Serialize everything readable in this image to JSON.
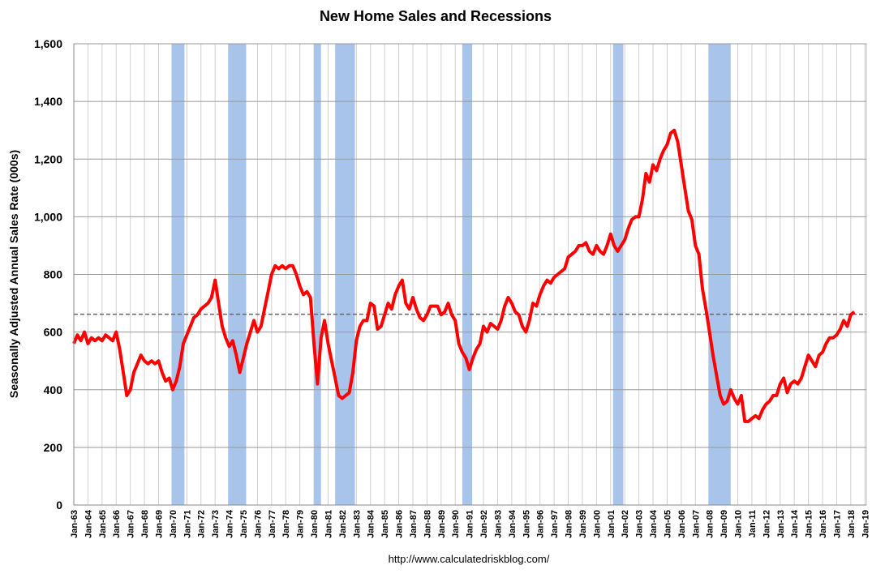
{
  "chart_data": {
    "type": "line",
    "title": "New Home Sales and Recessions",
    "y_label": "Seasonally Adjusted Annual Sales Rate (000s)",
    "source": "http://www.calculatedriskblog.com/",
    "xlim": [
      1963,
      2019.1
    ],
    "ylim": [
      0,
      1600
    ],
    "yticks": [
      0,
      200,
      400,
      600,
      800,
      {
        "value": 1000,
        "label": "1,000"
      },
      {
        "value": 1200,
        "label": "1,200"
      },
      {
        "value": 1400,
        "label": "1,400"
      },
      {
        "value": 1600,
        "label": "1,600"
      }
    ],
    "xticks": [
      {
        "value": 1963,
        "label": "Jan-63"
      },
      {
        "value": 1964,
        "label": "Jan-64"
      },
      {
        "value": 1965,
        "label": "Jan-65"
      },
      {
        "value": 1966,
        "label": "Jan-66"
      },
      {
        "value": 1967,
        "label": "Jan-67"
      },
      {
        "value": 1968,
        "label": "Jan-68"
      },
      {
        "value": 1969,
        "label": "Jan-69"
      },
      {
        "value": 1970,
        "label": "Jan-70"
      },
      {
        "value": 1971,
        "label": "Jan-71"
      },
      {
        "value": 1972,
        "label": "Jan-72"
      },
      {
        "value": 1973,
        "label": "Jan-73"
      },
      {
        "value": 1974,
        "label": "Jan-74"
      },
      {
        "value": 1975,
        "label": "Jan-75"
      },
      {
        "value": 1976,
        "label": "Jan-76"
      },
      {
        "value": 1977,
        "label": "Jan-77"
      },
      {
        "value": 1978,
        "label": "Jan-78"
      },
      {
        "value": 1979,
        "label": "Jan-79"
      },
      {
        "value": 1980,
        "label": "Jan-80"
      },
      {
        "value": 1981,
        "label": "Jan-81"
      },
      {
        "value": 1982,
        "label": "Jan-82"
      },
      {
        "value": 1983,
        "label": "Jan-83"
      },
      {
        "value": 1984,
        "label": "Jan-84"
      },
      {
        "value": 1985,
        "label": "Jan-85"
      },
      {
        "value": 1986,
        "label": "Jan-86"
      },
      {
        "value": 1987,
        "label": "Jan-87"
      },
      {
        "value": 1988,
        "label": "Jan-88"
      },
      {
        "value": 1989,
        "label": "Jan-89"
      },
      {
        "value": 1990,
        "label": "Jan-90"
      },
      {
        "value": 1991,
        "label": "Jan-91"
      },
      {
        "value": 1992,
        "label": "Jan-92"
      },
      {
        "value": 1993,
        "label": "Jan-93"
      },
      {
        "value": 1994,
        "label": "Jan-94"
      },
      {
        "value": 1995,
        "label": "Jan-95"
      },
      {
        "value": 1996,
        "label": "Jan-96"
      },
      {
        "value": 1997,
        "label": "Jan-97"
      },
      {
        "value": 1998,
        "label": "Jan-98"
      },
      {
        "value": 1999,
        "label": "Jan-99"
      },
      {
        "value": 2000,
        "label": "Jan-00"
      },
      {
        "value": 2001,
        "label": "Jan-01"
      },
      {
        "value": 2002,
        "label": "Jan-02"
      },
      {
        "value": 2003,
        "label": "Jan-03"
      },
      {
        "value": 2004,
        "label": "Jan-04"
      },
      {
        "value": 2005,
        "label": "Jan-05"
      },
      {
        "value": 2006,
        "label": "Jan-06"
      },
      {
        "value": 2007,
        "label": "Jan-07"
      },
      {
        "value": 2008,
        "label": "Jan-08"
      },
      {
        "value": 2009,
        "label": "Jan-09"
      },
      {
        "value": 2010,
        "label": "Jan-10"
      },
      {
        "value": 2011,
        "label": "Jan-11"
      },
      {
        "value": 2012,
        "label": "Jan-12"
      },
      {
        "value": 2013,
        "label": "Jan-13"
      },
      {
        "value": 2014,
        "label": "Jan-14"
      },
      {
        "value": 2015,
        "label": "Jan-15"
      },
      {
        "value": 2016,
        "label": "Jan-16"
      },
      {
        "value": 2017,
        "label": "Jan-17"
      },
      {
        "value": 2018,
        "label": "Jan-18"
      },
      {
        "value": 2019,
        "label": "Jan-19"
      }
    ],
    "grid": true,
    "ref_line": 662,
    "recession_color": "#a9c4eb",
    "recessions": [
      [
        1969.92,
        1970.83
      ],
      [
        1973.92,
        1975.2
      ],
      [
        1980.0,
        1980.5
      ],
      [
        1981.5,
        1982.9
      ],
      [
        1990.5,
        1991.2
      ],
      [
        2001.17,
        2001.9
      ],
      [
        2007.92,
        2009.5
      ]
    ],
    "series": [
      {
        "color": "#ff0000",
        "x": [
          1963,
          1963.25,
          1963.5,
          1963.75,
          1964,
          1964.25,
          1964.5,
          1964.75,
          1965,
          1965.25,
          1965.5,
          1965.75,
          1966,
          1966.25,
          1966.5,
          1966.75,
          1967,
          1967.25,
          1967.5,
          1967.75,
          1968,
          1968.25,
          1968.5,
          1968.75,
          1969,
          1969.25,
          1969.5,
          1969.75,
          1970,
          1970.25,
          1970.5,
          1970.75,
          1971,
          1971.25,
          1971.5,
          1971.75,
          1972,
          1972.25,
          1972.5,
          1972.75,
          1973,
          1973.25,
          1973.5,
          1973.75,
          1974,
          1974.25,
          1974.5,
          1974.75,
          1975,
          1975.25,
          1975.5,
          1975.75,
          1976,
          1976.25,
          1976.5,
          1976.75,
          1977,
          1977.25,
          1977.5,
          1977.75,
          1978,
          1978.25,
          1978.5,
          1978.75,
          1979,
          1979.25,
          1979.5,
          1979.75,
          1980,
          1980.25,
          1980.5,
          1980.75,
          1981,
          1981.25,
          1981.5,
          1981.75,
          1982,
          1982.25,
          1982.5,
          1982.75,
          1983,
          1983.25,
          1983.5,
          1983.75,
          1984,
          1984.25,
          1984.5,
          1984.75,
          1985,
          1985.25,
          1985.5,
          1985.75,
          1986,
          1986.25,
          1986.5,
          1986.75,
          1987,
          1987.25,
          1987.5,
          1987.75,
          1988,
          1988.25,
          1988.5,
          1988.75,
          1989,
          1989.25,
          1989.5,
          1989.75,
          1990,
          1990.25,
          1990.5,
          1990.75,
          1991,
          1991.25,
          1991.5,
          1991.75,
          1992,
          1992.25,
          1992.5,
          1992.75,
          1993,
          1993.25,
          1993.5,
          1993.75,
          1994,
          1994.25,
          1994.5,
          1994.75,
          1995,
          1995.25,
          1995.5,
          1995.75,
          1996,
          1996.25,
          1996.5,
          1996.75,
          1997,
          1997.25,
          1997.5,
          1997.75,
          1998,
          1998.25,
          1998.5,
          1998.75,
          1999,
          1999.25,
          1999.5,
          1999.75,
          2000,
          2000.25,
          2000.5,
          2000.75,
          2001,
          2001.25,
          2001.5,
          2001.75,
          2002,
          2002.25,
          2002.5,
          2002.75,
          2003,
          2003.25,
          2003.5,
          2003.75,
          2004,
          2004.25,
          2004.5,
          2004.75,
          2005,
          2005.25,
          2005.5,
          2005.75,
          2006,
          2006.25,
          2006.5,
          2006.75,
          2007,
          2007.25,
          2007.5,
          2007.75,
          2008,
          2008.25,
          2008.5,
          2008.75,
          2009,
          2009.25,
          2009.5,
          2009.75,
          2010,
          2010.25,
          2010.5,
          2010.75,
          2011,
          2011.25,
          2011.5,
          2011.75,
          2012,
          2012.25,
          2012.5,
          2012.75,
          2013,
          2013.25,
          2013.5,
          2013.75,
          2014,
          2014.25,
          2014.5,
          2014.75,
          2015,
          2015.25,
          2015.5,
          2015.75,
          2016,
          2016.25,
          2016.5,
          2016.75,
          2017,
          2017.25,
          2017.5,
          2017.75,
          2018,
          2018.25
        ],
        "values": [
          560,
          590,
          570,
          600,
          560,
          580,
          570,
          580,
          570,
          590,
          580,
          570,
          600,
          540,
          460,
          380,
          400,
          460,
          490,
          520,
          500,
          490,
          500,
          490,
          500,
          460,
          430,
          440,
          400,
          430,
          480,
          560,
          590,
          620,
          650,
          660,
          680,
          690,
          700,
          720,
          780,
          700,
          620,
          580,
          550,
          570,
          520,
          460,
          510,
          560,
          600,
          640,
          600,
          620,
          680,
          740,
          800,
          830,
          820,
          830,
          820,
          830,
          830,
          800,
          760,
          730,
          740,
          720,
          560,
          420,
          580,
          640,
          560,
          500,
          440,
          380,
          370,
          380,
          390,
          460,
          570,
          620,
          640,
          640,
          700,
          690,
          610,
          620,
          660,
          700,
          680,
          730,
          760,
          780,
          700,
          680,
          720,
          680,
          650,
          640,
          660,
          690,
          690,
          690,
          660,
          670,
          700,
          660,
          640,
          560,
          530,
          510,
          470,
          510,
          540,
          560,
          620,
          600,
          630,
          620,
          610,
          640,
          690,
          720,
          700,
          670,
          660,
          620,
          600,
          640,
          700,
          690,
          730,
          760,
          780,
          770,
          790,
          800,
          810,
          820,
          860,
          870,
          880,
          900,
          900,
          910,
          880,
          870,
          900,
          880,
          870,
          900,
          940,
          900,
          880,
          900,
          920,
          960,
          990,
          1000,
          1000,
          1060,
          1150,
          1120,
          1180,
          1160,
          1200,
          1230,
          1250,
          1290,
          1300,
          1260,
          1180,
          1100,
          1020,
          990,
          900,
          870,
          750,
          680,
          600,
          520,
          450,
          380,
          350,
          360,
          400,
          370,
          350,
          380,
          290,
          290,
          300,
          310,
          300,
          330,
          350,
          360,
          380,
          380,
          420,
          440,
          390,
          420,
          430,
          420,
          440,
          480,
          520,
          500,
          480,
          520,
          530,
          560,
          580,
          580,
          590,
          610,
          640,
          620,
          660,
          670
        ]
      }
    ]
  }
}
